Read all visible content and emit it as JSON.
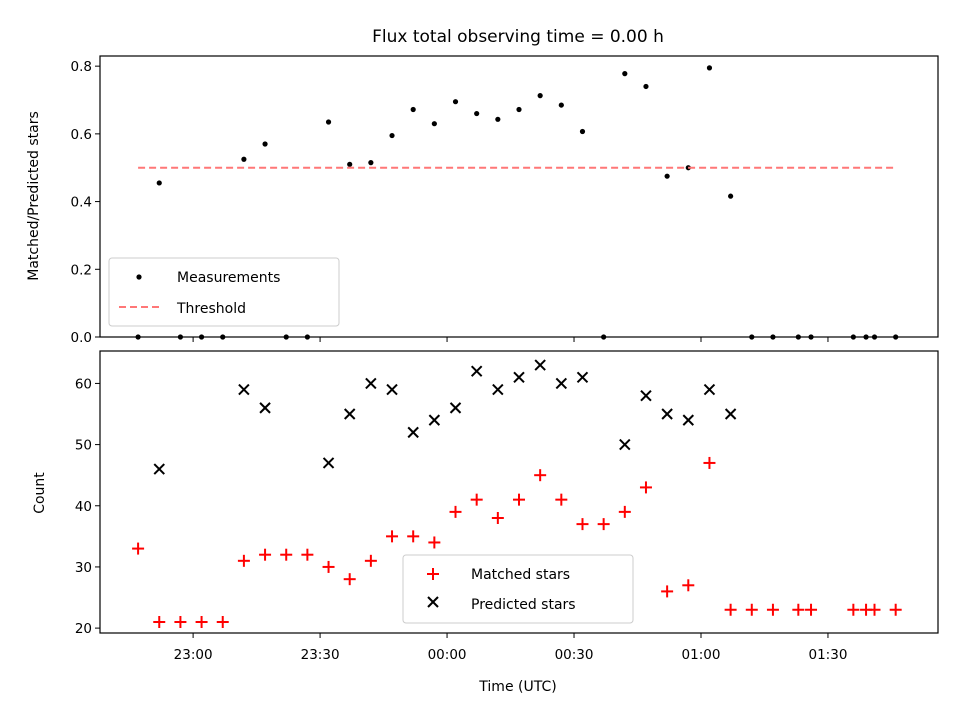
{
  "chart_data": [
    {
      "type": "scatter",
      "title": "Flux total observing time = 0.00 h",
      "xlabel": "",
      "ylabel": "Matched/Predicted stars",
      "ylim": [
        0,
        0.83
      ],
      "yticks": [
        "0.0",
        "0.2",
        "0.4",
        "0.6",
        "0.8"
      ],
      "ytick_values": [
        0,
        0.2,
        0.4,
        0.6,
        0.8
      ],
      "xticks_minutes": [
        -60,
        -30,
        0,
        30,
        60,
        90
      ],
      "xlim_minutes": [
        -82,
        116
      ],
      "legend": {
        "placement": "lower-left",
        "entries": [
          "Measurements",
          "Threshold"
        ]
      },
      "series": [
        {
          "name": "Measurements",
          "color": "#000000",
          "x_minutes": [
            -73,
            -68,
            -63,
            -58,
            -53,
            -48,
            -43,
            -38,
            -33,
            -28,
            -23,
            -18,
            -13,
            -8,
            -3,
            2,
            7,
            12,
            17,
            22,
            27,
            32,
            37,
            42,
            47,
            52,
            57,
            62,
            67,
            72,
            77,
            83,
            86,
            96,
            99,
            101,
            106
          ],
          "y": [
            0,
            0.455,
            0,
            0,
            0,
            0.525,
            0.57,
            0,
            0,
            0.635,
            0.51,
            0.515,
            0.595,
            0.672,
            0.63,
            0.695,
            0.66,
            0.643,
            0.672,
            0.713,
            0.685,
            0.607,
            0,
            0.778,
            0.74,
            0.475,
            0.5,
            0.795,
            0.416,
            0,
            0,
            0,
            0,
            0,
            0,
            0,
            0
          ]
        },
        {
          "name": "Threshold",
          "color": "#ff7777",
          "x_minutes": [
            -73,
            106
          ],
          "y": [
            0.5,
            0.5
          ]
        }
      ]
    },
    {
      "type": "scatter",
      "title": "",
      "xlabel": "Time (UTC)",
      "ylabel": "Count",
      "ylim": [
        19.2,
        65.3
      ],
      "yticks": [
        "20",
        "30",
        "40",
        "50",
        "60"
      ],
      "ytick_values": [
        20,
        30,
        40,
        50,
        60
      ],
      "xticks": [
        "23:00",
        "23:30",
        "00:00",
        "00:30",
        "01:00",
        "01:30"
      ],
      "xticks_minutes": [
        -60,
        -30,
        0,
        30,
        60,
        90
      ],
      "xlim_minutes": [
        -82,
        116
      ],
      "legend": {
        "placement": "lower-center",
        "entries": [
          "Matched stars",
          "Predicted stars"
        ]
      },
      "series": [
        {
          "name": "Matched stars",
          "color": "#ff0000",
          "x_minutes": [
            -73,
            -68,
            -63,
            -58,
            -53,
            -48,
            -43,
            -38,
            -33,
            -28,
            -23,
            -18,
            -13,
            -8,
            -3,
            2,
            7,
            12,
            17,
            22,
            27,
            32,
            37,
            42,
            47,
            52,
            57,
            62,
            67,
            72,
            77,
            83,
            86,
            96,
            99,
            101,
            106
          ],
          "y": [
            33,
            21,
            21,
            21,
            21,
            31,
            32,
            32,
            32,
            30,
            28,
            31,
            35,
            35,
            34,
            39,
            41,
            38,
            41,
            45,
            41,
            37,
            37,
            39,
            43,
            26,
            27,
            47,
            23,
            23,
            23,
            23,
            23,
            23,
            23,
            23,
            23
          ]
        },
        {
          "name": "Predicted stars",
          "color": "#000000",
          "x_minutes": [
            -68,
            -48,
            -43,
            -28,
            -23,
            -18,
            -13,
            -8,
            -3,
            2,
            7,
            12,
            17,
            22,
            27,
            32,
            42,
            47,
            52,
            57,
            62,
            67
          ],
          "y": [
            46,
            59,
            56,
            47,
            55,
            60,
            59,
            52,
            54,
            56,
            62,
            59,
            61,
            63,
            60,
            61,
            50,
            58,
            55,
            54,
            59,
            55
          ]
        }
      ]
    }
  ]
}
